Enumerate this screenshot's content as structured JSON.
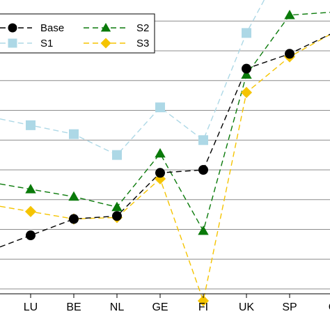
{
  "chart_data": {
    "type": "line",
    "categories": [
      "LU",
      "BE",
      "NL",
      "GE",
      "FI",
      "UK",
      "SP",
      "G"
    ],
    "grid": "horizontal",
    "legend_position": "top-left",
    "series": [
      {
        "name": "Base",
        "marker": "circle",
        "color": "#000000",
        "line_color": "#000000",
        "values": [
          1.8,
          2.35,
          2.45,
          3.9,
          4.0,
          7.4,
          7.9,
          8.6
        ]
      },
      {
        "name": "S1",
        "marker": "square",
        "color": "#add8e6",
        "line_color": "#add8e6",
        "values": [
          5.5,
          5.2,
          4.5,
          6.1,
          5.0,
          8.6,
          11.3,
          10.0
        ]
      },
      {
        "name": "S2",
        "marker": "triangle",
        "color": "#0a7a0a",
        "line_color": "#0a7a0a",
        "values": [
          3.35,
          3.1,
          2.75,
          4.55,
          1.95,
          7.2,
          9.2,
          9.3
        ]
      },
      {
        "name": "S3",
        "marker": "diamond",
        "color": "#f5c400",
        "line_color": "#f5c400",
        "values": [
          2.6,
          2.35,
          2.4,
          3.7,
          -0.4,
          6.6,
          7.8,
          8.6
        ]
      }
    ]
  }
}
